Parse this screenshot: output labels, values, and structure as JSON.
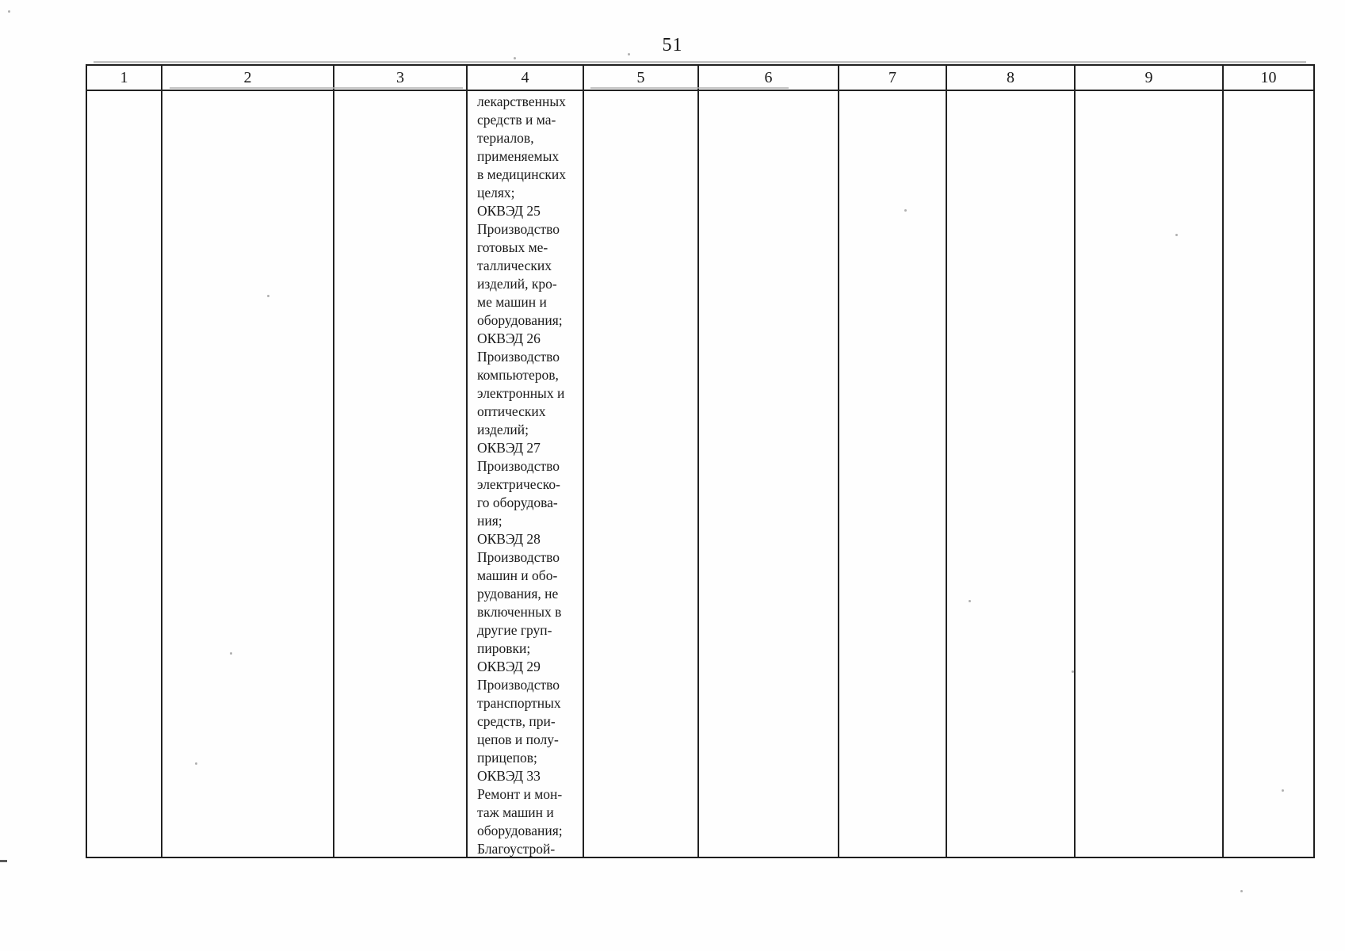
{
  "page": {
    "number": "51"
  },
  "table": {
    "headers": [
      "1",
      "2",
      "3",
      "4",
      "5",
      "6",
      "7",
      "8",
      "9",
      "10"
    ],
    "activity_column_index": 4,
    "activity_lines": [
      "лекарственных",
      "средств и ма-",
      "териалов,",
      "применяемых",
      "в медицинских",
      "целях;",
      "ОКВЭД 25",
      "Производство",
      "готовых ме-",
      "таллических",
      "изделий, кро-",
      "ме машин и",
      "оборудования;",
      "ОКВЭД 26",
      "Производство",
      "компьютеров,",
      "электронных и",
      "оптических",
      "изделий;",
      "ОКВЭД 27",
      "Производство",
      "электрическо-",
      "го оборудова-",
      "ния;",
      "ОКВЭД 28",
      "Производство",
      "машин и обо-",
      "рудования, не",
      "включенных в",
      "другие груп-",
      "пировки;",
      "ОКВЭД 29",
      "Производство",
      "транспортных",
      "средств, при-",
      "цепов и полу-",
      "прицепов;",
      "ОКВЭД 33",
      "Ремонт и мон-",
      "таж машин и",
      "оборудования;",
      "Благоустрой-"
    ],
    "text_color": "#1b1b1b",
    "border_color": "#222222"
  }
}
